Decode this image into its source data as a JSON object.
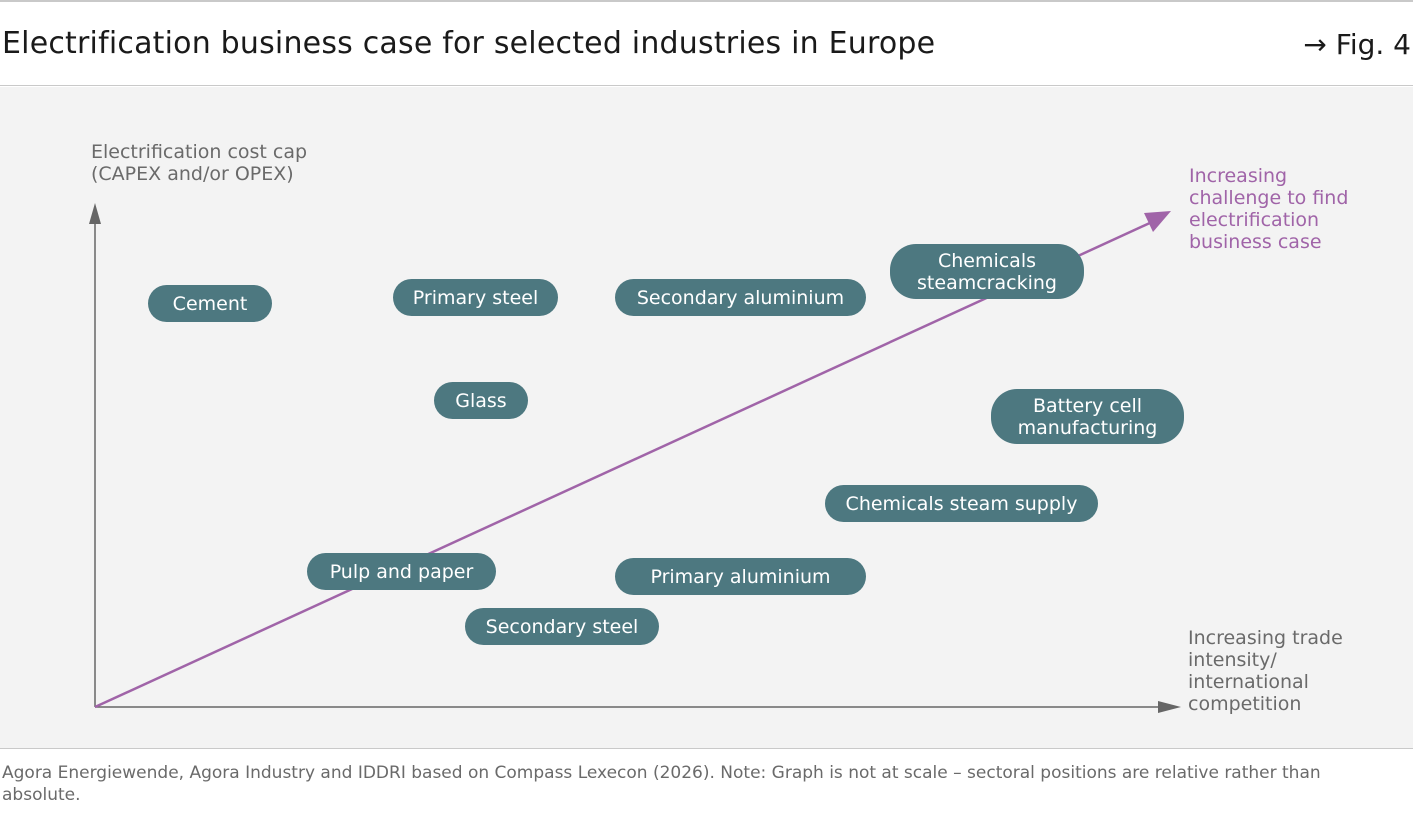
{
  "header": {
    "title": "Electrification business case for selected industries in Europe",
    "figure_ref": "→ Fig. 4"
  },
  "diagram": {
    "y_axis_label": "Electrification cost cap\n(CAPEX and/or OPEX)",
    "x_axis_label": "Increasing trade\nintensity/\ninternational\ncompetition",
    "trend_label": "Increasing\nchallenge to find\nelectrification\nbusiness case",
    "colors": {
      "pill": "#4d7880",
      "trend": "#a064a8",
      "axis": "#666666"
    },
    "industries": [
      {
        "label": "Cement"
      },
      {
        "label": "Primary steel"
      },
      {
        "label": "Secondary aluminium"
      },
      {
        "label": "Chemicals\nsteamcracking"
      },
      {
        "label": "Glass"
      },
      {
        "label": "Battery cell\nmanufacturing"
      },
      {
        "label": "Chemicals steam supply"
      },
      {
        "label": "Pulp and paper"
      },
      {
        "label": "Primary aluminium"
      },
      {
        "label": "Secondary steel"
      }
    ]
  },
  "footer": {
    "source": "Agora Energiewende, Agora Industry and IDDRI based on Compass Lexecon (2026). Note: Graph is not at scale – sectoral positions are relative rather than absolute."
  }
}
